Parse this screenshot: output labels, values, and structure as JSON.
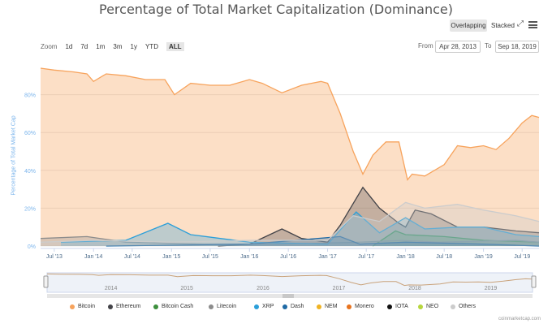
{
  "header": {
    "title": "Percentage of Total Market Capitalization (Dominance)",
    "view_overlapping": "Overlapping",
    "view_stacked": "Stacked",
    "zoom_label": "Zoom",
    "zoom_options": [
      "1d",
      "7d",
      "1m",
      "3m",
      "1y",
      "YTD",
      "ALL"
    ],
    "zoom_active": "ALL",
    "from_label": "From",
    "from_value": "Apr 28, 2013",
    "to_label": "To",
    "to_value": "Sep 18, 2019"
  },
  "credit": "coinmarketcap.com",
  "colors": {
    "bitcoin": "#f7a35c",
    "ethereum": "#434348",
    "bitcoin_cash": "#3d8f3d",
    "litecoin": "#8c8c8c",
    "xrp": "#2b9fd9",
    "dash": "#1f6aa5",
    "nem": "#f0b323",
    "monero": "#e8731e",
    "iota": "#111111",
    "neo": "#b7d63e",
    "others": "#cccccc"
  },
  "chart_data": {
    "type": "area",
    "title": "Percentage of Total Market Capitalization (Dominance)",
    "ylabel": "Percentage of Total Market Cap",
    "xlabel": "",
    "ylim": [
      0,
      100
    ],
    "yticks": [
      "0%",
      "20%",
      "40%",
      "60%",
      "80%"
    ],
    "xticks": [
      "Jul '13",
      "Jan '14",
      "Jul '14",
      "Jan '15",
      "Jul '15",
      "Jan '16",
      "Jul '16",
      "Jan '17",
      "Jul '17",
      "Jan '18",
      "Jul '18",
      "Jan '19",
      "Jul '19"
    ],
    "x_range": [
      "2013-04-28",
      "2019-09-18"
    ],
    "navigator_labels": [
      "2014",
      "2015",
      "2016",
      "2017",
      "2018",
      "2019"
    ],
    "legend_position": "bottom",
    "grid": true,
    "series": [
      {
        "name": "Bitcoin",
        "color": "#f7a35c",
        "points": [
          [
            "2013-04-28",
            94
          ],
          [
            "2013-07-01",
            93
          ],
          [
            "2013-10-01",
            92
          ],
          [
            "2013-12-01",
            91
          ],
          [
            "2014-01-01",
            87
          ],
          [
            "2014-03-01",
            91
          ],
          [
            "2014-06-01",
            90
          ],
          [
            "2014-09-01",
            88
          ],
          [
            "2014-12-01",
            88
          ],
          [
            "2015-01-15",
            80
          ],
          [
            "2015-04-01",
            86
          ],
          [
            "2015-07-01",
            85
          ],
          [
            "2015-10-01",
            85
          ],
          [
            "2016-01-01",
            88
          ],
          [
            "2016-03-01",
            86
          ],
          [
            "2016-06-01",
            81
          ],
          [
            "2016-09-01",
            85
          ],
          [
            "2016-12-01",
            87
          ],
          [
            "2017-01-01",
            86
          ],
          [
            "2017-03-01",
            70
          ],
          [
            "2017-05-01",
            50
          ],
          [
            "2017-06-15",
            38
          ],
          [
            "2017-08-01",
            48
          ],
          [
            "2017-10-01",
            55
          ],
          [
            "2017-12-01",
            55
          ],
          [
            "2018-01-10",
            35
          ],
          [
            "2018-02-01",
            38
          ],
          [
            "2018-04-01",
            37
          ],
          [
            "2018-07-01",
            43
          ],
          [
            "2018-09-01",
            53
          ],
          [
            "2018-11-01",
            52
          ],
          [
            "2019-01-01",
            53
          ],
          [
            "2019-03-01",
            51
          ],
          [
            "2019-05-01",
            57
          ],
          [
            "2019-07-01",
            65
          ],
          [
            "2019-08-15",
            69
          ],
          [
            "2019-09-18",
            68
          ]
        ]
      },
      {
        "name": "Ethereum",
        "color": "#434348",
        "points": [
          [
            "2015-08-07",
            0
          ],
          [
            "2016-01-01",
            1
          ],
          [
            "2016-06-01",
            9
          ],
          [
            "2016-09-01",
            4
          ],
          [
            "2017-01-01",
            2
          ],
          [
            "2017-03-01",
            11
          ],
          [
            "2017-06-15",
            31
          ],
          [
            "2017-09-01",
            20
          ],
          [
            "2017-12-01",
            12
          ],
          [
            "2018-01-01",
            10
          ],
          [
            "2018-02-15",
            19
          ],
          [
            "2018-05-01",
            17
          ],
          [
            "2018-09-01",
            10
          ],
          [
            "2019-01-01",
            10
          ],
          [
            "2019-06-01",
            8
          ],
          [
            "2019-09-18",
            7
          ]
        ]
      },
      {
        "name": "Bitcoin Cash",
        "color": "#3d8f3d",
        "points": [
          [
            "2017-08-01",
            0
          ],
          [
            "2017-11-15",
            8
          ],
          [
            "2018-01-01",
            6
          ],
          [
            "2018-07-01",
            5
          ],
          [
            "2019-01-01",
            3
          ],
          [
            "2019-09-18",
            2
          ]
        ]
      },
      {
        "name": "Litecoin",
        "color": "#8c8c8c",
        "points": [
          [
            "2013-04-28",
            4
          ],
          [
            "2013-12-01",
            5
          ],
          [
            "2014-06-01",
            2
          ],
          [
            "2015-06-01",
            1
          ],
          [
            "2016-06-01",
            1
          ],
          [
            "2017-06-01",
            2
          ],
          [
            "2017-12-15",
            3
          ],
          [
            "2018-06-01",
            2
          ],
          [
            "2019-06-01",
            3
          ],
          [
            "2019-09-18",
            2
          ]
        ]
      },
      {
        "name": "XRP",
        "color": "#2b9fd9",
        "points": [
          [
            "2013-08-01",
            2
          ],
          [
            "2014-06-01",
            3
          ],
          [
            "2014-12-15",
            12
          ],
          [
            "2015-04-01",
            6
          ],
          [
            "2016-01-01",
            2
          ],
          [
            "2017-01-01",
            1
          ],
          [
            "2017-05-15",
            18
          ],
          [
            "2017-09-01",
            7
          ],
          [
            "2018-01-01",
            15
          ],
          [
            "2018-04-01",
            9
          ],
          [
            "2018-09-15",
            10
          ],
          [
            "2019-01-01",
            10
          ],
          [
            "2019-06-01",
            6
          ],
          [
            "2019-09-18",
            5
          ]
        ]
      },
      {
        "name": "Dash",
        "color": "#1f6aa5",
        "points": [
          [
            "2014-03-01",
            0
          ],
          [
            "2016-01-01",
            1
          ],
          [
            "2017-03-01",
            5
          ],
          [
            "2017-06-01",
            1
          ],
          [
            "2018-01-01",
            2
          ],
          [
            "2019-01-01",
            1
          ],
          [
            "2019-09-18",
            0
          ]
        ]
      },
      {
        "name": "Others",
        "color": "#cccccc",
        "points": [
          [
            "2013-04-28",
            2
          ],
          [
            "2014-01-01",
            3
          ],
          [
            "2015-01-01",
            2
          ],
          [
            "2016-01-01",
            3
          ],
          [
            "2017-01-01",
            3
          ],
          [
            "2017-05-01",
            16
          ],
          [
            "2017-09-01",
            13
          ],
          [
            "2018-01-01",
            23
          ],
          [
            "2018-04-01",
            20
          ],
          [
            "2018-09-01",
            22
          ],
          [
            "2019-01-01",
            19
          ],
          [
            "2019-06-01",
            16
          ],
          [
            "2019-09-18",
            13
          ]
        ]
      }
    ],
    "legend": [
      "Bitcoin",
      "Ethereum",
      "Bitcoin Cash",
      "Litecoin",
      "XRP",
      "Dash",
      "NEM",
      "Monero",
      "IOTA",
      "NEO",
      "Others"
    ]
  }
}
